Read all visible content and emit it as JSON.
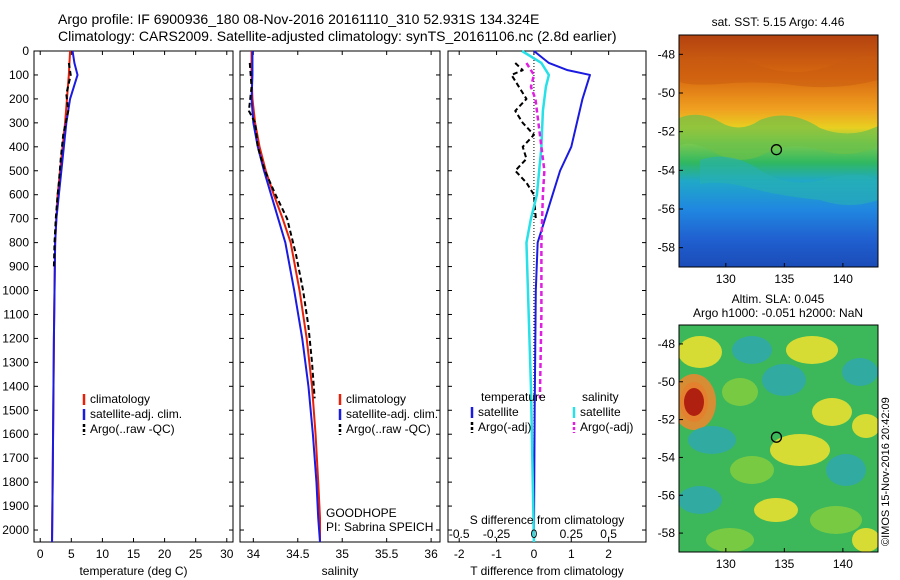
{
  "header": {
    "line1": "Argo profile: IF 6900936_180 08-Nov-2016 20161110_310 52.931S 134.324E",
    "line2": "Climatology: CARS2009. Satellite-adjusted climatology: synTS_20161106.nc (2.8d earlier)"
  },
  "colors": {
    "climatology": "#e8200a",
    "satellite": "#1a1ae0",
    "argo": "#000000",
    "satellite_s": "#28e0e8",
    "argo_s": "#e020e0"
  },
  "chart_data": [
    {
      "type": "line",
      "name": "temperature-profile",
      "xlabel": "temperature (deg C)",
      "ylabel": "",
      "xlim": [
        -1,
        31
      ],
      "ylim": [
        2050,
        0
      ],
      "xticks": [
        "0",
        "5",
        "10",
        "15",
        "20",
        "25",
        "30"
      ],
      "yticks": [
        "0",
        "100",
        "200",
        "300",
        "400",
        "500",
        "600",
        "700",
        "800",
        "900",
        "1000",
        "1100",
        "1200",
        "1300",
        "1400",
        "1500",
        "1600",
        "1700",
        "1800",
        "1900",
        "2000"
      ],
      "legend": [
        "climatology",
        "satellite-adj. clim.",
        "Argo(..raw -QC)"
      ],
      "legend_position": "lower-right",
      "series": [
        {
          "name": "climatology",
          "x": [
            4.8,
            4.6,
            4.3,
            4.0,
            3.6,
            3.2,
            2.8,
            2.6,
            2.4,
            2.3,
            2.2,
            2.1,
            2.0,
            1.9
          ],
          "y": [
            0,
            100,
            200,
            300,
            400,
            500,
            600,
            700,
            800,
            1000,
            1200,
            1500,
            1800,
            2050
          ]
        },
        {
          "name": "satellite-adj. clim.",
          "x": [
            5.2,
            5.5,
            6.0,
            4.8,
            4.2,
            3.6,
            3.0,
            2.6,
            2.4,
            2.3,
            2.2,
            2.1,
            2.0,
            1.9
          ],
          "y": [
            0,
            50,
            100,
            200,
            300,
            450,
            600,
            700,
            800,
            1000,
            1200,
            1500,
            1800,
            2050
          ]
        },
        {
          "name": "Argo(..raw -QC)",
          "x": [
            4.6,
            4.9,
            4.2,
            4.5,
            3.7,
            3.3,
            3.0,
            2.8,
            2.5,
            2.3,
            2.2
          ],
          "y": [
            50,
            100,
            180,
            250,
            350,
            450,
            550,
            600,
            700,
            800,
            900
          ]
        }
      ]
    },
    {
      "type": "line",
      "name": "salinity-profile",
      "xlabel": "salinity",
      "xlim": [
        33.85,
        36.1
      ],
      "ylim": [
        2050,
        0
      ],
      "xticks": [
        "34",
        "34.5",
        "35",
        "35.5",
        "36"
      ],
      "legend": [
        "climatology",
        "satellite-adj. clim.",
        "Argo(..raw -QC)"
      ],
      "legend_position": "lower-right",
      "annotations": [
        "GOODHOPE",
        "PI: Sabrina SPEICH"
      ],
      "series": [
        {
          "name": "climatology",
          "x": [
            33.98,
            33.98,
            33.99,
            34.02,
            34.07,
            34.14,
            34.23,
            34.33,
            34.42,
            34.52,
            34.6,
            34.66,
            34.7,
            34.73,
            34.75,
            34.75
          ],
          "y": [
            0,
            100,
            200,
            300,
            400,
            500,
            600,
            700,
            800,
            1000,
            1200,
            1400,
            1600,
            1800,
            1950,
            2050
          ]
        },
        {
          "name": "satellite-adj. clim.",
          "x": [
            33.99,
            33.99,
            33.98,
            34.0,
            34.05,
            34.12,
            34.2,
            34.28,
            34.36,
            34.46,
            34.55,
            34.62,
            34.67,
            34.71,
            34.73,
            34.75
          ],
          "y": [
            0,
            100,
            200,
            300,
            400,
            500,
            600,
            700,
            800,
            1000,
            1200,
            1400,
            1600,
            1800,
            1950,
            2050
          ]
        },
        {
          "name": "Argo(..raw -QC)",
          "x": [
            33.96,
            33.97,
            33.98,
            33.95,
            34.02,
            34.05,
            34.13,
            34.25,
            34.38,
            34.48,
            34.56,
            34.62,
            34.66,
            34.69
          ],
          "y": [
            50,
            100,
            150,
            250,
            300,
            400,
            500,
            600,
            700,
            850,
            1000,
            1150,
            1300,
            1450
          ]
        }
      ]
    },
    {
      "type": "line",
      "name": "difference-profile",
      "xlabel": "T difference from climatology",
      "xlabel_top": "S difference from climatology",
      "xlim": [
        -2.3,
        3.0
      ],
      "ylim": [
        2050,
        0
      ],
      "xticks_bottom": [
        "-2",
        "-1",
        "0",
        "1",
        "2"
      ],
      "xticks_top": [
        "-0.5",
        "-0.25",
        "0",
        "0.25",
        "0.5"
      ],
      "legend_groups": [
        {
          "title": "temperature",
          "entries": [
            "satellite",
            "Argo(-adj)"
          ]
        },
        {
          "title": "salinity",
          "entries": [
            "satellite",
            "Argo(-adj)"
          ]
        }
      ],
      "legend_position": "lower",
      "series": [
        {
          "name": "temperature satellite",
          "x": [
            0.0,
            0.4,
            0.9,
            1.5,
            1.3,
            1.0,
            0.7,
            0.5,
            0.3,
            0.1,
            0.05,
            0.02,
            0.0
          ],
          "y": [
            0,
            50,
            80,
            100,
            200,
            400,
            500,
            600,
            700,
            800,
            1000,
            1500,
            2050
          ]
        },
        {
          "name": "temperature Argo(-adj)",
          "x": [
            -0.5,
            -0.3,
            -0.6,
            -0.4,
            -0.2,
            -0.5,
            -0.3,
            0.0,
            -0.3,
            -0.2,
            -0.5,
            -0.2,
            0.0,
            0.05
          ],
          "y": [
            50,
            80,
            100,
            150,
            200,
            250,
            300,
            350,
            400,
            450,
            500,
            550,
            600,
            700
          ]
        },
        {
          "name": "salinity satellite",
          "x": [
            -0.08,
            0.05,
            0.1,
            0.08,
            0.06,
            0.05,
            0.02,
            -0.02,
            -0.05,
            -0.04,
            -0.02,
            0.0
          ],
          "y": [
            0,
            50,
            100,
            150,
            250,
            400,
            600,
            700,
            800,
            1000,
            1400,
            2050
          ]
        },
        {
          "name": "salinity Argo(-adj)",
          "x": [
            -0.05,
            0.0,
            -0.02,
            0.01,
            0.03,
            0.05,
            0.07,
            0.06,
            0.05,
            0.05,
            0.04
          ],
          "y": [
            50,
            100,
            150,
            200,
            300,
            400,
            500,
            600,
            800,
            1100,
            1450
          ]
        }
      ]
    },
    {
      "type": "heatmap",
      "name": "sst-map",
      "title": "sat. SST: 5.15  Argo: 4.46",
      "xlim": [
        126,
        143
      ],
      "ylim": [
        -59,
        -47
      ],
      "xticks": [
        "130",
        "135",
        "140"
      ],
      "yticks": [
        "-48",
        "-50",
        "-52",
        "-54",
        "-56",
        "-58"
      ],
      "marker": {
        "lon": 134.324,
        "lat": -52.931
      }
    },
    {
      "type": "heatmap",
      "name": "sla-map",
      "title": "Altim. SLA: 0.045",
      "subtitle": "Argo h1000: -0.051  h2000: NaN",
      "xlim": [
        126,
        143
      ],
      "ylim": [
        -59,
        -47
      ],
      "xticks": [
        "130",
        "135",
        "140"
      ],
      "yticks": [
        "-48",
        "-50",
        "-52",
        "-54",
        "-56",
        "-58"
      ],
      "marker": {
        "lon": 134.324,
        "lat": -52.931
      }
    }
  ],
  "footer": {
    "credit": "©IMOS 15-Nov-2016 20:42:09"
  }
}
